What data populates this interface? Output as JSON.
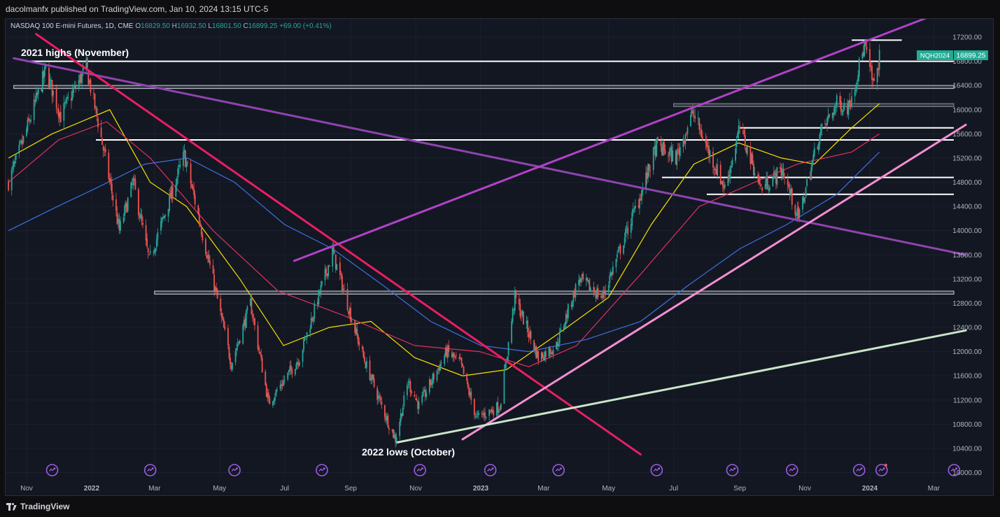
{
  "header": {
    "published": "dacolmanfx published on TradingView.com, Jan 10, 2024 13:15 UTC-5"
  },
  "legend": {
    "symbol": "NASDAQ 100 E-mini Futures, 1D, CME",
    "o_label": "O",
    "o": "16829.50",
    "h_label": "H",
    "h": "16932.50",
    "l_label": "L",
    "l": "16801.50",
    "c_label": "C",
    "c": "16899.25",
    "change": "+69.00 (+0.41%)"
  },
  "price_tag": {
    "ticker": "NQH2024",
    "value": "16899.25"
  },
  "annotations": {
    "highs": "2021 highs (November)",
    "lows": "2022 lows (October)"
  },
  "footer": {
    "brand": "TradingView"
  },
  "chart_data": {
    "type": "line",
    "title": "",
    "xlabel": "",
    "ylabel": "",
    "ylim": [
      10000,
      17400
    ],
    "y_ticks": [
      "17200.00",
      "16800.00",
      "16400.00",
      "16000.00",
      "15600.00",
      "15200.00",
      "14800.00",
      "14400.00",
      "14000.00",
      "13600.00",
      "13200.00",
      "12800.00",
      "12400.00",
      "12000.00",
      "11600.00",
      "11200.00",
      "10800.00",
      "10400.00",
      "10000.00"
    ],
    "x_ticks": [
      "Nov",
      "2022",
      "Mar",
      "May",
      "Jul",
      "Sep",
      "Nov",
      "2023",
      "Mar",
      "May",
      "Jul",
      "Sep",
      "Nov",
      "2024",
      "Mar"
    ],
    "x_tick_dates": [
      "2021-11-01",
      "2022-01-01",
      "2022-03-01",
      "2022-05-01",
      "2022-07-01",
      "2022-09-01",
      "2022-11-01",
      "2023-01-01",
      "2023-03-01",
      "2023-05-01",
      "2023-07-01",
      "2023-09-01",
      "2023-11-01",
      "2024-01-01",
      "2024-03-01"
    ],
    "price_path": {
      "dates": [
        "2021-10-15",
        "2021-10-29",
        "2021-11-19",
        "2021-12-03",
        "2021-12-27",
        "2022-01-07",
        "2022-01-27",
        "2022-02-09",
        "2022-02-24",
        "2022-03-29",
        "2022-04-26",
        "2022-05-12",
        "2022-05-30",
        "2022-06-16",
        "2022-07-15",
        "2022-08-15",
        "2022-09-06",
        "2022-09-13",
        "2022-09-30",
        "2022-10-13",
        "2022-10-25",
        "2022-11-04",
        "2022-11-30",
        "2022-12-13",
        "2022-12-28",
        "2023-01-19",
        "2023-02-02",
        "2023-02-24",
        "2023-03-13",
        "2023-04-03",
        "2023-04-25",
        "2023-05-31",
        "2023-06-15",
        "2023-07-03",
        "2023-07-19",
        "2023-08-03",
        "2023-08-18",
        "2023-09-01",
        "2023-09-21",
        "2023-10-11",
        "2023-10-26",
        "2023-11-14",
        "2023-12-01",
        "2023-12-12",
        "2023-12-27",
        "2024-01-05",
        "2024-01-10"
      ],
      "values": [
        14800,
        15500,
        16650,
        15900,
        16700,
        15800,
        14000,
        14800,
        13500,
        15250,
        13100,
        11800,
        12800,
        11150,
        11900,
        13650,
        12300,
        11900,
        11100,
        10550,
        11500,
        11100,
        12000,
        11800,
        10900,
        11100,
        12900,
        11900,
        12100,
        13200,
        12900,
        14600,
        15400,
        15200,
        15950,
        15300,
        14700,
        15700,
        14700,
        15000,
        14200,
        15550,
        16100,
        16050,
        17050,
        16350,
        16899
      ]
    },
    "moving_averages": [
      {
        "color": "#f7e000",
        "dates": [
          "2021-10-15",
          "2021-11-25",
          "2022-01-18",
          "2022-02-25",
          "2022-03-31",
          "2022-05-20",
          "2022-06-30",
          "2022-08-12",
          "2022-09-20",
          "2022-10-31",
          "2022-12-15",
          "2023-01-25",
          "2023-03-15",
          "2023-05-01",
          "2023-06-10",
          "2023-07-20",
          "2023-08-31",
          "2023-10-10",
          "2023-11-10",
          "2023-12-15",
          "2024-01-10"
        ],
        "values": [
          15200,
          15600,
          16000,
          14800,
          14400,
          13200,
          12100,
          12400,
          12500,
          11900,
          11600,
          11700,
          12300,
          12900,
          14100,
          15100,
          15450,
          15200,
          15100,
          15700,
          16100
        ]
      },
      {
        "color": "#e0305e",
        "dates": [
          "2021-10-15",
          "2021-12-01",
          "2022-01-15",
          "2022-02-25",
          "2022-04-25",
          "2022-06-25",
          "2022-08-25",
          "2022-10-31",
          "2022-12-31",
          "2023-02-15",
          "2023-04-01",
          "2023-06-01",
          "2023-07-25",
          "2023-09-15",
          "2023-10-25",
          "2023-12-15",
          "2024-01-10"
        ],
        "values": [
          14800,
          15500,
          15800,
          15200,
          14000,
          13000,
          12600,
          12100,
          12000,
          11750,
          12100,
          13300,
          14400,
          14800,
          15100,
          15300,
          15600
        ]
      },
      {
        "color": "#3f6fe0",
        "dates": [
          "2021-10-15",
          "2021-11-30",
          "2022-01-05",
          "2022-02-20",
          "2022-04-01",
          "2022-05-15",
          "2022-07-01",
          "2022-08-15",
          "2022-10-01",
          "2022-11-15",
          "2023-01-01",
          "2023-02-15",
          "2023-04-10",
          "2023-05-31",
          "2023-07-15",
          "2023-09-01",
          "2023-10-15",
          "2023-12-01",
          "2024-01-10"
        ],
        "values": [
          14000,
          14400,
          14700,
          15100,
          15200,
          14800,
          14100,
          13700,
          13100,
          12500,
          12100,
          12000,
          12200,
          12500,
          13100,
          13700,
          14100,
          14600,
          15300
        ]
      }
    ],
    "horizontal_levels": [
      {
        "date_start": "2021-11-01",
        "date_end": "2024-03-31",
        "value": 16800,
        "color": "#ffffff"
      },
      {
        "date_start": "2021-10-20",
        "date_end": "2024-03-31",
        "value": 16400,
        "color": "#b2b5be",
        "band_to": 16350
      },
      {
        "date_start": "2022-01-05",
        "date_end": "2024-03-31",
        "value": 15500,
        "color": "#ffffff"
      },
      {
        "date_start": "2022-03-01",
        "date_end": "2024-03-31",
        "value": 13000,
        "color": "#b2b5be",
        "band_to": 12950
      },
      {
        "date_start": "2023-07-01",
        "date_end": "2024-03-31",
        "value": 16100,
        "color": "#787b86",
        "band_to": 16050
      },
      {
        "date_start": "2023-09-01",
        "date_end": "2024-03-31",
        "value": 15700,
        "color": "#ffffff"
      },
      {
        "date_start": "2023-06-20",
        "date_end": "2024-03-31",
        "value": 14880,
        "color": "#ffffff"
      },
      {
        "date_start": "2023-08-01",
        "date_end": "2024-03-31",
        "value": 14600,
        "color": "#ffffff"
      },
      {
        "date_start": "2023-12-15",
        "date_end": "2024-01-31",
        "value": 17150,
        "color": "#ffffff"
      }
    ],
    "trendlines": [
      {
        "color": "#8e44ad",
        "date_start": "2021-10-20",
        "value_start": 16850,
        "date_end": "2024-03-31",
        "value_end": 13600
      },
      {
        "color": "#e91e63",
        "date_start": "2021-11-10",
        "value_start": 17250,
        "date_end": "2023-05-31",
        "value_end": 10300
      },
      {
        "color": "#b142c8",
        "date_start": "2022-07-10",
        "value_start": 13500,
        "date_end": "2024-02-28",
        "value_end": 17550
      },
      {
        "color": "#f48fd0",
        "date_start": "2022-12-15",
        "value_start": 10550,
        "date_end": "2024-03-31",
        "value_end": 15750
      },
      {
        "color": "#c8e6c9",
        "date_start": "2022-10-15",
        "value_start": 10500,
        "date_end": "2024-03-31",
        "value_end": 12350
      }
    ],
    "event_markers": [
      "2021-11-25",
      "2022-02-25",
      "2022-05-15",
      "2022-08-05",
      "2022-11-05",
      "2023-01-10",
      "2023-03-15",
      "2023-06-15",
      "2023-08-25",
      "2023-10-20",
      "2023-12-22",
      "2024-01-12",
      "2024-03-20"
    ]
  }
}
